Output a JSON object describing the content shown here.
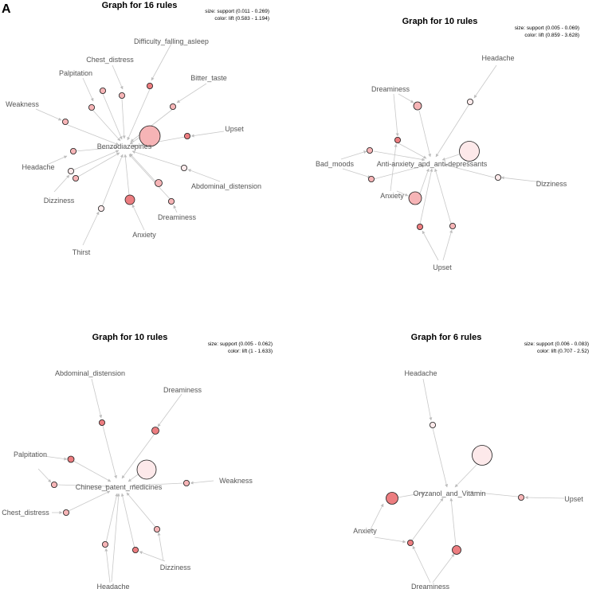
{
  "panel_letter": "A",
  "graphs": [
    {
      "title": "Graph for 16 rules",
      "legend_size": "size: support (0.011 - 0.269)",
      "legend_color": "color: lift (0.583 - 1.194)",
      "center": "Benzodiazepines",
      "labels": [
        "Difficulty_falling_asleep",
        "Chest_distress",
        "Bitter_taste",
        "Palpitation",
        "Weakness",
        "Upset",
        "Headache",
        "Abdominal_distension",
        "Dizziness",
        "Dreaminess",
        "Anxiety",
        "Thirst"
      ]
    },
    {
      "title": "Graph for 10 rules",
      "legend_size": "size: support (0.005 - 0.069)",
      "legend_color": "color: lift (0.859 - 3.628)",
      "center": "Anti-anxiety_and_anti-depressants",
      "labels": [
        "Headache",
        "Dreaminess",
        "Bad_moods",
        "Anxiety",
        "Dizziness",
        "Upset"
      ]
    },
    {
      "title": "Graph for 10 rules",
      "legend_size": "size: support (0.005 - 0.062)",
      "legend_color": "color: lift (1 - 1.633)",
      "center": "Chinese_patent_medicines",
      "labels": [
        "Abdominal_distension",
        "Dreaminess",
        "Palpitation",
        "Weakness",
        "Chest_distress",
        "Dizziness",
        "Headache"
      ]
    },
    {
      "title": "Graph for 6 rules",
      "legend_size": "size: support (0.006 - 0.083)",
      "legend_color": "color: lift (0.707 - 2.52)",
      "center": "Oryzanol_and_Vitamin",
      "labels": [
        "Headache",
        "Upset",
        "Anxiety",
        "Dreaminess"
      ]
    }
  ],
  "colors": {
    "edge": "#c8c8c8",
    "node_light": "#fde9ea",
    "node_mid": "#f6b4b6",
    "node_dark": "#ec7d80"
  }
}
